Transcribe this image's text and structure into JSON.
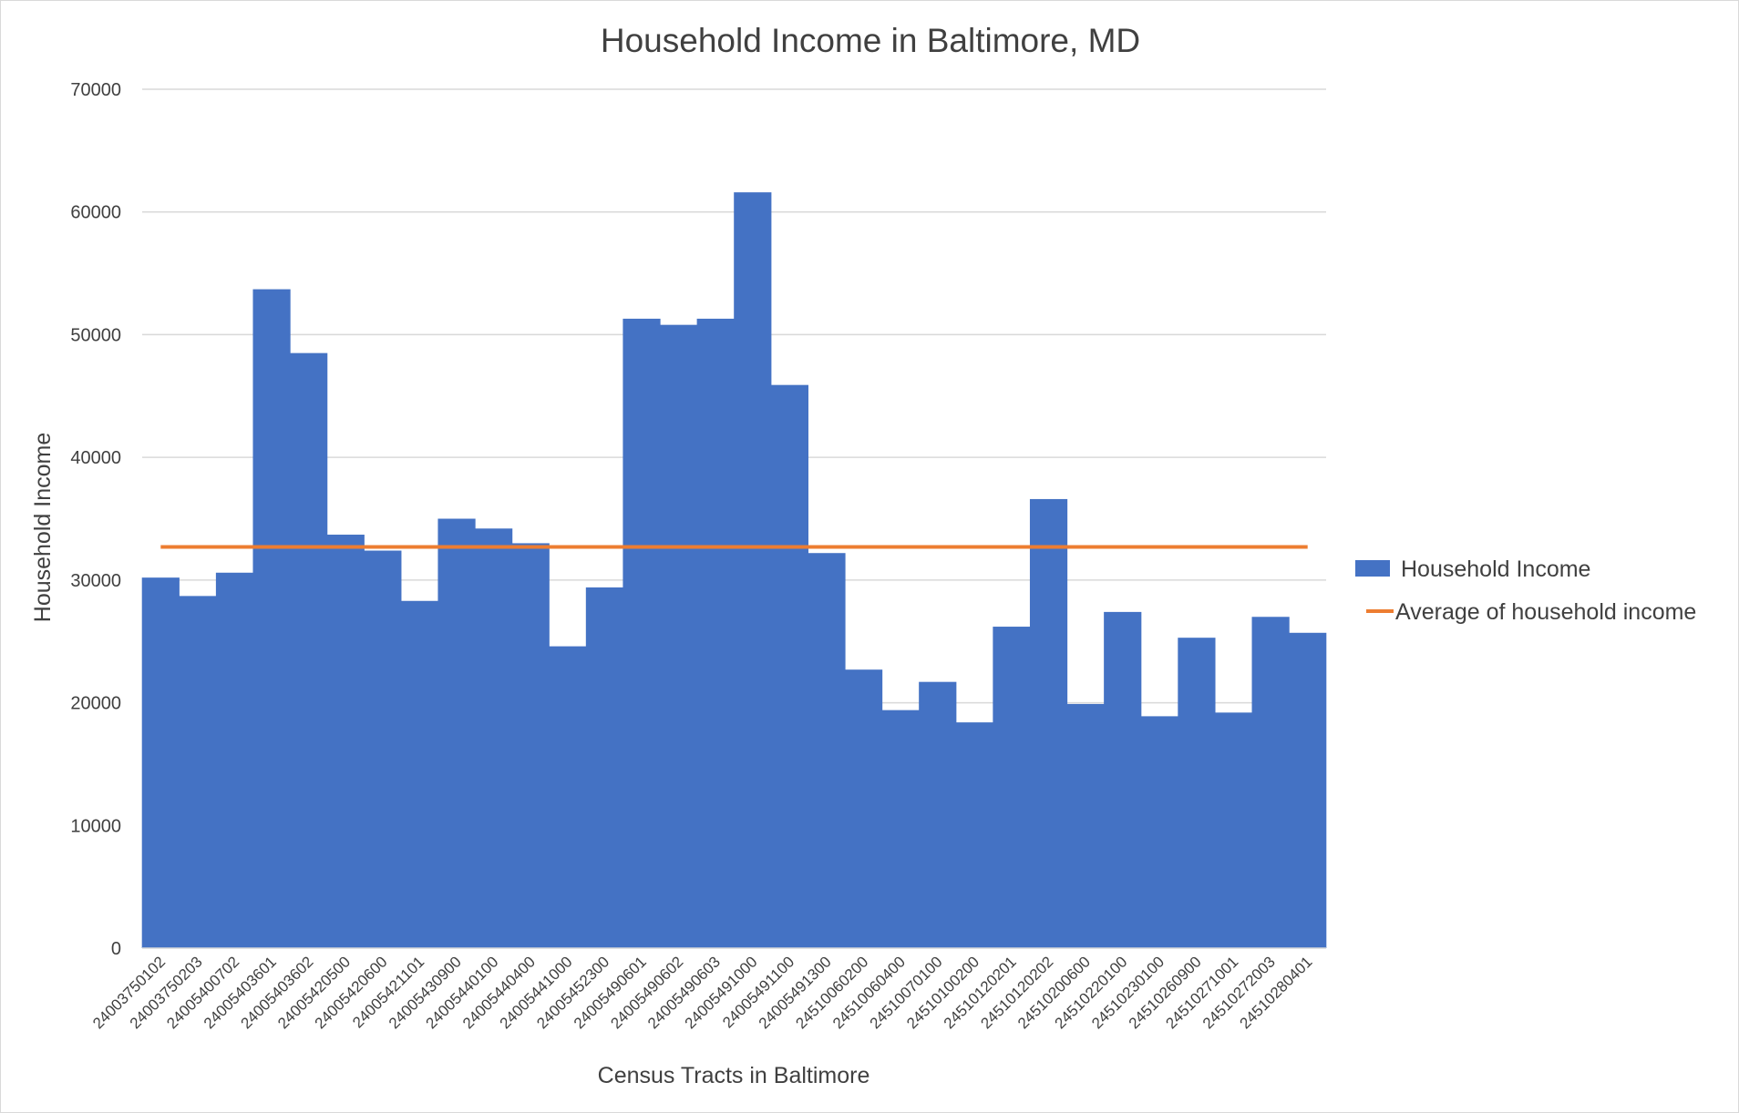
{
  "chart_data": {
    "type": "bar",
    "title": "Household Income in Baltimore, MD",
    "xlabel": "Census Tracts in Baltimore",
    "ylabel": "Household Income",
    "ylim": [
      0,
      70000
    ],
    "yticks": [
      "0",
      "10000",
      "20000",
      "30000",
      "40000",
      "50000",
      "60000",
      "70000"
    ],
    "grid": true,
    "legend_position": "right",
    "categories": [
      "24003750102",
      "24003750203",
      "24005400702",
      "24005403601",
      "24005403602",
      "24005420500",
      "24005420600",
      "24005421101",
      "24005430900",
      "24005440100",
      "24005440400",
      "24005441000",
      "24005452300",
      "24005490601",
      "24005490602",
      "24005490603",
      "24005491000",
      "24005491100",
      "24005491300",
      "24510060200",
      "24510060400",
      "24510070100",
      "24510100200",
      "24510120201",
      "24510120202",
      "24510200600",
      "24510220100",
      "24510230100",
      "24510260900",
      "24510271001",
      "24510272003",
      "24510280401"
    ],
    "series": [
      {
        "name": "Household Income",
        "type": "bar",
        "color": "#4472c4",
        "values": [
          30200,
          28700,
          30600,
          53700,
          48500,
          33700,
          32400,
          28300,
          35000,
          34200,
          33000,
          24600,
          29400,
          51300,
          50800,
          51300,
          61600,
          45900,
          32200,
          22700,
          19400,
          21700,
          18400,
          26200,
          36600,
          19900,
          27400,
          18900,
          25300,
          19200,
          27000,
          25700
        ]
      },
      {
        "name": "Average of household income",
        "type": "line",
        "color": "#ed7d31",
        "value": 32700
      }
    ]
  }
}
